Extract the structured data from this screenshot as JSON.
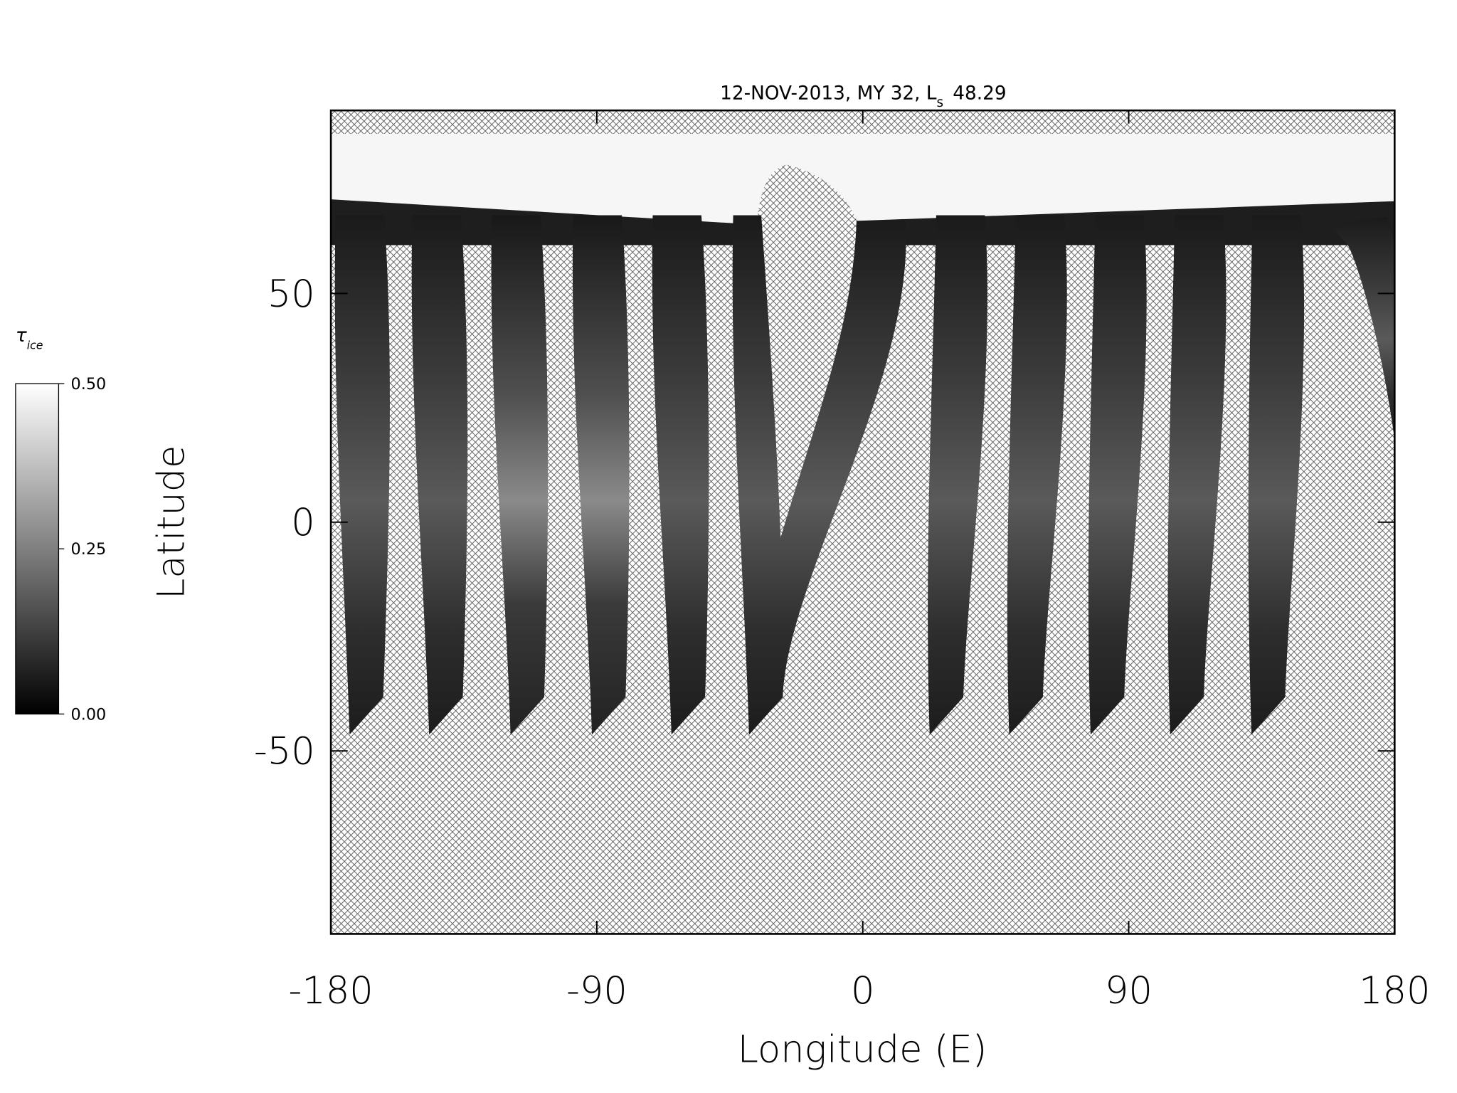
{
  "chart_data": {
    "type": "map",
    "title_parts": [
      "12-NOV-2013, MY 32,  L",
      "s",
      "48.29"
    ],
    "x_label": "Longitude (E)",
    "y_label": "Latitude",
    "xlim": [
      -180,
      180
    ],
    "xticks": [
      -180,
      -90,
      0,
      90,
      180
    ],
    "ylim": [
      -90,
      90
    ],
    "yticks": [
      -50,
      0,
      50
    ],
    "colorbar": {
      "label": "τ",
      "label_subscript": "ice",
      "clim": [
        0,
        0.5
      ],
      "ticks": [
        {
          "value": 0,
          "label": "0.00"
        },
        {
          "value": 0.25,
          "label": "0.25"
        },
        {
          "value": 0.5,
          "label": "0.50"
        }
      ],
      "colors": [
        "#000000",
        "#ffffff"
      ]
    }
  }
}
